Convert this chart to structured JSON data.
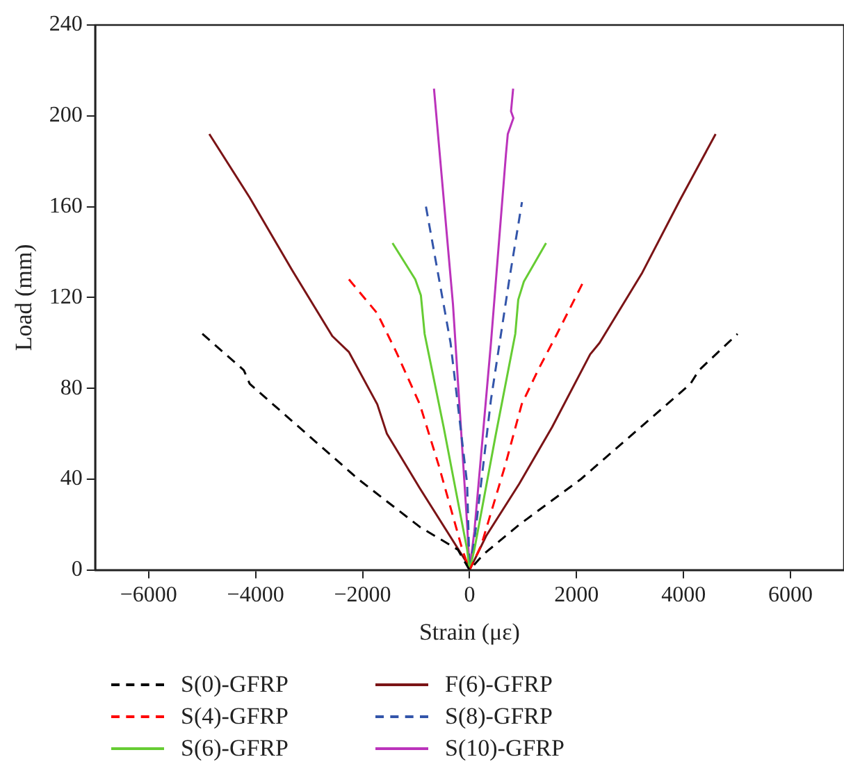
{
  "chart_data": {
    "type": "line",
    "xlabel": "Strain (με)",
    "ylabel": "Load (mm)",
    "xlim": [
      -7000,
      7000
    ],
    "xticks": [
      -6000,
      -4000,
      -2000,
      0,
      2000,
      4000,
      6000
    ],
    "ylim": [
      0,
      240
    ],
    "yticks": [
      0,
      40,
      80,
      120,
      160,
      200,
      240
    ],
    "grid": false,
    "legend": "bottom",
    "marker": "none",
    "series": [
      {
        "name": "S(0)-GFRP",
        "color": "#000000",
        "line_style": "dashed",
        "x": [
          -4995,
          -4220,
          -4110,
          -2080,
          -930,
          -220,
          0,
          265,
          930,
          2080,
          4130,
          4290,
          5010
        ],
        "values": [
          104,
          88,
          82,
          40,
          19,
          9,
          0,
          7,
          20,
          40,
          82,
          88,
          104
        ]
      },
      {
        "name": "S(4)-GFRP",
        "color": "#ff0000",
        "line_style": "dashed",
        "x": [
          -2255,
          -1725,
          -1370,
          -930,
          -575,
          -135,
          0,
          220,
          665,
          975,
          1280,
          1635,
          2150
        ],
        "values": [
          128,
          113,
          96,
          73,
          46,
          9,
          0,
          11,
          46,
          73,
          88,
          104,
          128
        ]
      },
      {
        "name": "S(6)-GFRP",
        "color": "#66cc33",
        "line_style": "solid",
        "x": [
          -1440,
          -1015,
          -910,
          -840,
          -485,
          -45,
          0,
          90,
          485,
          855,
          910,
          1015,
          1430
        ],
        "values": [
          144,
          128,
          121,
          104,
          63,
          9,
          0,
          9,
          59,
          104,
          119,
          127,
          144
        ]
      },
      {
        "name": "F(6)-GFRP",
        "color": "#7b1416",
        "line_style": "solid",
        "x": [
          -4865,
          -4110,
          -3315,
          -2565,
          -2255,
          -1725,
          -1545,
          -930,
          -45,
          0,
          310,
          930,
          1545,
          2255,
          2430,
          3230,
          3935,
          4600
        ],
        "values": [
          192,
          164,
          132,
          103,
          96,
          73,
          60,
          36,
          3,
          0,
          15,
          38,
          63,
          95,
          100,
          131,
          163,
          192
        ]
      },
      {
        "name": "S(8)-GFRP",
        "color": "#3355aa",
        "line_style": "dashed",
        "x": [
          -815,
          -355,
          -45,
          0,
          90,
          400,
          750,
          980
        ],
        "values": [
          160,
          100,
          38,
          0,
          13,
          75,
          129,
          162
        ]
      },
      {
        "name": "S(10)-GFRP",
        "color": "#bb33bb",
        "line_style": "solid",
        "x": [
          -665,
          -310,
          -45,
          0,
          90,
          400,
          680,
          715,
          820,
          775,
          815
        ],
        "values": [
          212,
          117,
          20,
          0,
          17,
          100,
          183,
          192,
          199,
          202,
          212
        ]
      }
    ]
  }
}
